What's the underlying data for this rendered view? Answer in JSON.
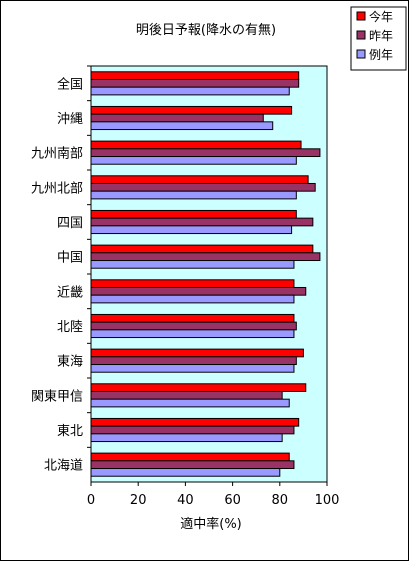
{
  "chart_data": {
    "type": "bar",
    "orientation": "horizontal",
    "title": "明後日予報(降水の有無)",
    "xlabel": "適中率(%)",
    "ylabel": "",
    "xlim": [
      0,
      100
    ],
    "x_ticks": [
      "0",
      "20",
      "40",
      "60",
      "80",
      "100"
    ],
    "plot_background": "#ccffff",
    "grid": false,
    "legend_position": "top-right",
    "categories": [
      "全国",
      "沖縄",
      "九州南部",
      "九州北部",
      "四国",
      "中国",
      "近畿",
      "北陸",
      "東海",
      "関東甲信",
      "東北",
      "北海道"
    ],
    "series": [
      {
        "name": "今年",
        "color": "#ff0000",
        "values": [
          88,
          85,
          89,
          92,
          87,
          94,
          86,
          86,
          90,
          91,
          88,
          84
        ]
      },
      {
        "name": "昨年",
        "color": "#993366",
        "values": [
          88,
          73,
          97,
          95,
          94,
          97,
          91,
          87,
          87,
          81,
          86,
          86
        ]
      },
      {
        "name": "例年",
        "color": "#9999ff",
        "values": [
          84,
          77,
          87,
          87,
          85,
          86,
          86,
          86,
          86,
          84,
          81,
          80
        ]
      }
    ]
  }
}
